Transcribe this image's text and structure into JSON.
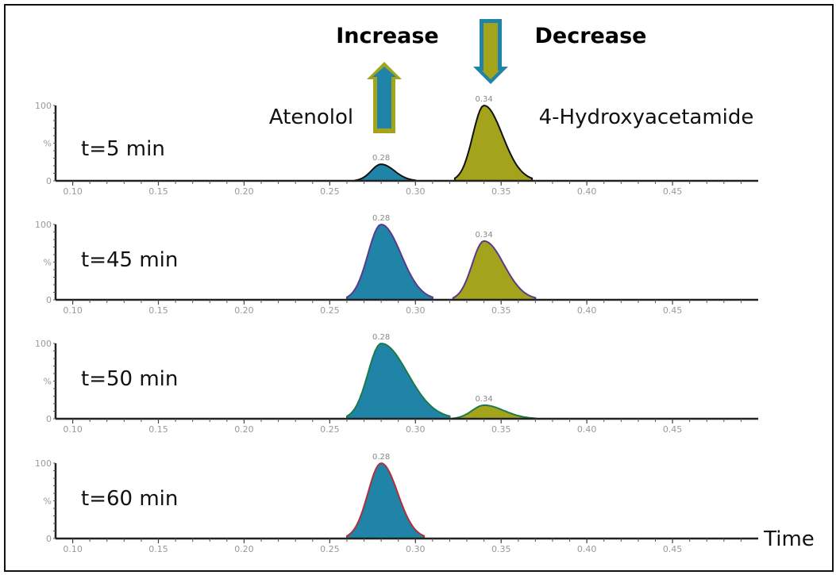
{
  "colors": {
    "atenolol_fill": "#1f84a8",
    "hydroxy_fill": "#a3a31c",
    "increase_text": "#1f84a8",
    "decrease_text": "#a3a31c",
    "axis": "#222222",
    "panel_outlines": [
      "#111111",
      "#5a3a8a",
      "#1d7a4a",
      "#b0303a"
    ]
  },
  "icons": {
    "up_arrow": "arrow-up-icon",
    "down_arrow": "arrow-down-icon"
  },
  "chart_data": {
    "type": "area",
    "title": "",
    "header": {
      "increase": "Increase",
      "decrease": "Decrease"
    },
    "compound_labels": {
      "atenolol": "Atenolol",
      "hydroxy": "4-Hydroxyacetamide"
    },
    "xlabel": "Time",
    "ylabel": "",
    "xlim": [
      0.09,
      0.5
    ],
    "ylim": [
      0,
      100
    ],
    "x_ticks": [
      "0.10",
      "0.15",
      "0.20",
      "0.25",
      "0.30",
      "0.35",
      "0.40",
      "0.45"
    ],
    "x_tick_values": [
      0.1,
      0.15,
      0.2,
      0.25,
      0.3,
      0.35,
      0.4,
      0.45
    ],
    "y_ticks": [
      "100",
      "%",
      "0"
    ],
    "y_tick_values": [
      100,
      50,
      0
    ],
    "panels": [
      {
        "label": "t=5 min",
        "peaks": [
          {
            "compound": "Atenolol",
            "rt": 0.28,
            "rt_label": "0.28",
            "height": 22,
            "start": 0.265,
            "end": 0.3
          },
          {
            "compound": "4-Hydroxyacetamide",
            "rt": 0.34,
            "rt_label": "0.34",
            "height": 100,
            "start": 0.323,
            "end": 0.368
          }
        ]
      },
      {
        "label": "t=45 min",
        "peaks": [
          {
            "compound": "Atenolol",
            "rt": 0.28,
            "rt_label": "0.28",
            "height": 100,
            "start": 0.26,
            "end": 0.31
          },
          {
            "compound": "4-Hydroxyacetamide",
            "rt": 0.34,
            "rt_label": "0.34",
            "height": 78,
            "start": 0.322,
            "end": 0.37
          }
        ]
      },
      {
        "label": "t=50 min",
        "peaks": [
          {
            "compound": "Atenolol",
            "rt": 0.28,
            "rt_label": "0.28",
            "height": 100,
            "start": 0.26,
            "end": 0.32
          },
          {
            "compound": "4-Hydroxyacetamide",
            "rt": 0.34,
            "rt_label": "0.34",
            "height": 18,
            "start": 0.322,
            "end": 0.37
          }
        ]
      },
      {
        "label": "t=60 min",
        "peaks": [
          {
            "compound": "Atenolol",
            "rt": 0.28,
            "rt_label": "0.28",
            "height": 100,
            "start": 0.26,
            "end": 0.305
          }
        ]
      }
    ]
  }
}
